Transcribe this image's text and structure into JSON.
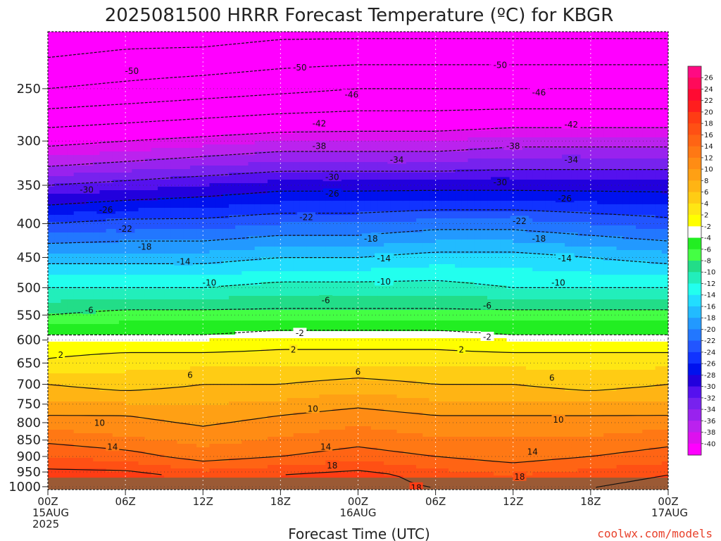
{
  "chart_data": {
    "type": "heatmap",
    "title": "2025081500 HRRR Forecast Temperature (ºC) for KBGR",
    "xlabel": "Forecast Time (UTC)",
    "credit": "coolwx.com/models",
    "y_ticks": [
      250,
      300,
      350,
      400,
      450,
      500,
      550,
      600,
      650,
      700,
      750,
      800,
      850,
      900,
      950,
      1000
    ],
    "ylim": [
      1010,
      205
    ],
    "xlim": [
      0,
      48
    ],
    "x_ticks": [
      {
        "h": 0,
        "lines": [
          "00Z",
          "15AUG",
          "2025"
        ]
      },
      {
        "h": 6,
        "lines": [
          "06Z"
        ]
      },
      {
        "h": 12,
        "lines": [
          "12Z"
        ]
      },
      {
        "h": 18,
        "lines": [
          "18Z"
        ]
      },
      {
        "h": 24,
        "lines": [
          "00Z",
          "16AUG"
        ]
      },
      {
        "h": 30,
        "lines": [
          "06Z"
        ]
      },
      {
        "h": 36,
        "lines": [
          "12Z"
        ]
      },
      {
        "h": 42,
        "lines": [
          "18Z"
        ]
      },
      {
        "h": 48,
        "lines": [
          "00Z",
          "17AUG"
        ]
      }
    ],
    "hours": [
      0,
      6,
      12,
      18,
      24,
      30,
      36,
      42,
      48
    ],
    "temperature_profiles": [
      {
        "pressure": 1005,
        "temps": [
          20,
          19,
          17,
          18,
          19,
          18,
          17,
          18,
          19
        ]
      },
      {
        "pressure": 960,
        "temps": [
          19,
          19,
          17,
          18,
          19,
          17,
          16,
          17,
          18
        ]
      },
      {
        "pressure": 900,
        "temps": [
          16,
          15,
          13,
          14,
          15,
          14,
          13,
          14,
          15
        ]
      },
      {
        "pressure": 840,
        "temps": [
          13,
          12,
          11,
          12,
          13,
          12,
          12,
          12,
          13
        ]
      },
      {
        "pressure": 780,
        "temps": [
          10,
          10,
          9,
          10,
          11,
          10,
          10,
          10,
          10
        ]
      },
      {
        "pressure": 700,
        "temps": [
          6,
          5,
          6,
          6,
          7,
          6,
          6,
          5,
          6
        ]
      },
      {
        "pressure": 640,
        "temps": [
          2,
          3,
          3,
          3,
          3,
          3,
          3,
          3,
          3
        ]
      },
      {
        "pressure": 600,
        "temps": [
          0,
          0,
          0,
          1,
          1,
          1,
          0,
          0,
          0
        ]
      },
      {
        "pressure": 590,
        "temps": [
          -2,
          -2,
          -2,
          -1,
          -1,
          -1,
          -2,
          -2,
          -2
        ]
      },
      {
        "pressure": 550,
        "temps": [
          -6,
          -5,
          -5,
          -5,
          -5,
          -5,
          -5,
          -5,
          -5
        ]
      },
      {
        "pressure": 500,
        "temps": [
          -10,
          -10,
          -10,
          -9,
          -9,
          -9,
          -10,
          -10,
          -10
        ]
      },
      {
        "pressure": 450,
        "temps": [
          -15,
          -15,
          -15,
          -14,
          -14,
          -13,
          -13,
          -14,
          -15
        ]
      },
      {
        "pressure": 400,
        "temps": [
          -22,
          -21,
          -21,
          -20,
          -20,
          -19,
          -19,
          -20,
          -21
        ]
      },
      {
        "pressure": 350,
        "temps": [
          -30,
          -29,
          -28,
          -27,
          -27,
          -27,
          -27,
          -27,
          -27
        ]
      },
      {
        "pressure": 300,
        "temps": [
          -39,
          -38,
          -37,
          -36,
          -36,
          -36,
          -35,
          -35,
          -35
        ]
      },
      {
        "pressure": 250,
        "temps": [
          -50,
          -49,
          -48,
          -47,
          -46,
          -46,
          -46,
          -46,
          -46
        ]
      },
      {
        "pressure": 205,
        "temps": [
          -57,
          -56,
          -56,
          -55,
          -55,
          -55,
          -55,
          -55,
          -55
        ]
      }
    ],
    "colorbar": {
      "labels": [
        26,
        24,
        22,
        20,
        18,
        16,
        14,
        12,
        10,
        8,
        6,
        4,
        2,
        -2,
        -4,
        -6,
        -8,
        -10,
        -12,
        -14,
        -16,
        -18,
        -20,
        -22,
        -24,
        -26,
        -28,
        -30,
        -32,
        -34,
        -36,
        -38,
        -40
      ],
      "colors": [
        "#ff0a82",
        "#ff0a5a",
        "#ff0a32",
        "#ff1e1e",
        "#ff3c14",
        "#ff5014",
        "#ff6414",
        "#ff7814",
        "#ff8c14",
        "#ffa014",
        "#ffb414",
        "#ffcc14",
        "#ffe614",
        "#ffff00",
        "#ffffff",
        "#22ee22",
        "#44ff44",
        "#22dd88",
        "#22eebb",
        "#22ffee",
        "#22ddff",
        "#22bbff",
        "#2299ff",
        "#2277ff",
        "#2255ff",
        "#1133ff",
        "#0011ee",
        "#2200dd",
        "#5511ee",
        "#7722ee",
        "#9922ee",
        "#bb22ee",
        "#dd11ee",
        "#ff00ff"
      ],
      "color_levels": [
        28,
        26,
        24,
        22,
        20,
        18,
        16,
        14,
        12,
        10,
        8,
        6,
        4,
        2,
        0,
        -2,
        -4,
        -6,
        -8,
        -10,
        -12,
        -14,
        -16,
        -18,
        -20,
        -22,
        -24,
        -26,
        -28,
        -30,
        -32,
        -34,
        -36,
        -38,
        -40
      ],
      "freezing_line_color": "#e0188e"
    },
    "contour_labels": [
      {
        "h": 6.5,
        "p": 235,
        "v": "-50"
      },
      {
        "h": 19.5,
        "p": 232,
        "v": "-50"
      },
      {
        "h": 35,
        "p": 230,
        "v": "-50"
      },
      {
        "h": 23.5,
        "p": 255,
        "v": "-46"
      },
      {
        "h": 38,
        "p": 253,
        "v": "-46"
      },
      {
        "h": 21,
        "p": 282,
        "v": "-42"
      },
      {
        "h": 40.5,
        "p": 283,
        "v": "-42"
      },
      {
        "h": 21,
        "p": 305,
        "v": "-38"
      },
      {
        "h": 36,
        "p": 305,
        "v": "-38"
      },
      {
        "h": 27,
        "p": 320,
        "v": "-34"
      },
      {
        "h": 40.5,
        "p": 320,
        "v": "-34"
      },
      {
        "h": 22,
        "p": 340,
        "v": "-30"
      },
      {
        "h": 35,
        "p": 346,
        "v": "-30"
      },
      {
        "h": 3,
        "p": 355,
        "v": "-30"
      },
      {
        "h": 22,
        "p": 360,
        "v": "-26"
      },
      {
        "h": 40,
        "p": 366,
        "v": "-26"
      },
      {
        "h": 4.5,
        "p": 381,
        "v": "-26"
      },
      {
        "h": 20,
        "p": 391,
        "v": "-22"
      },
      {
        "h": 36.5,
        "p": 396,
        "v": "-22"
      },
      {
        "h": 6,
        "p": 407,
        "v": "-22"
      },
      {
        "h": 25,
        "p": 421,
        "v": "-18"
      },
      {
        "h": 38,
        "p": 421,
        "v": "-18"
      },
      {
        "h": 7.5,
        "p": 433,
        "v": "-18"
      },
      {
        "h": 26,
        "p": 451,
        "v": "-14"
      },
      {
        "h": 40,
        "p": 451,
        "v": "-14"
      },
      {
        "h": 10.5,
        "p": 456,
        "v": "-14"
      },
      {
        "h": 12.5,
        "p": 491,
        "v": "-10"
      },
      {
        "h": 26,
        "p": 489,
        "v": "-10"
      },
      {
        "h": 39.5,
        "p": 491,
        "v": "-10"
      },
      {
        "h": 21.5,
        "p": 522,
        "v": "-6"
      },
      {
        "h": 34,
        "p": 532,
        "v": "-6"
      },
      {
        "h": 3.2,
        "p": 540,
        "v": "-6"
      },
      {
        "h": 19.5,
        "p": 585,
        "v": "-2"
      },
      {
        "h": 34,
        "p": 593,
        "v": "-2"
      },
      {
        "h": 19,
        "p": 620,
        "v": "2"
      },
      {
        "h": 32,
        "p": 620,
        "v": "2"
      },
      {
        "h": 1,
        "p": 631,
        "v": "2"
      },
      {
        "h": 11,
        "p": 677,
        "v": "6"
      },
      {
        "h": 24,
        "p": 670,
        "v": "6"
      },
      {
        "h": 39,
        "p": 684,
        "v": "6"
      },
      {
        "h": 20.5,
        "p": 762,
        "v": "10"
      },
      {
        "h": 39.5,
        "p": 791,
        "v": "10"
      },
      {
        "h": 4,
        "p": 800,
        "v": "10"
      },
      {
        "h": 5,
        "p": 870,
        "v": "14"
      },
      {
        "h": 21.5,
        "p": 870,
        "v": "14"
      },
      {
        "h": 37.5,
        "p": 885,
        "v": "14"
      },
      {
        "h": 22,
        "p": 928,
        "v": "18"
      },
      {
        "h": 36.5,
        "p": 965,
        "v": "18"
      },
      {
        "h": 28.5,
        "p": 1002,
        "v": "18"
      }
    ]
  }
}
